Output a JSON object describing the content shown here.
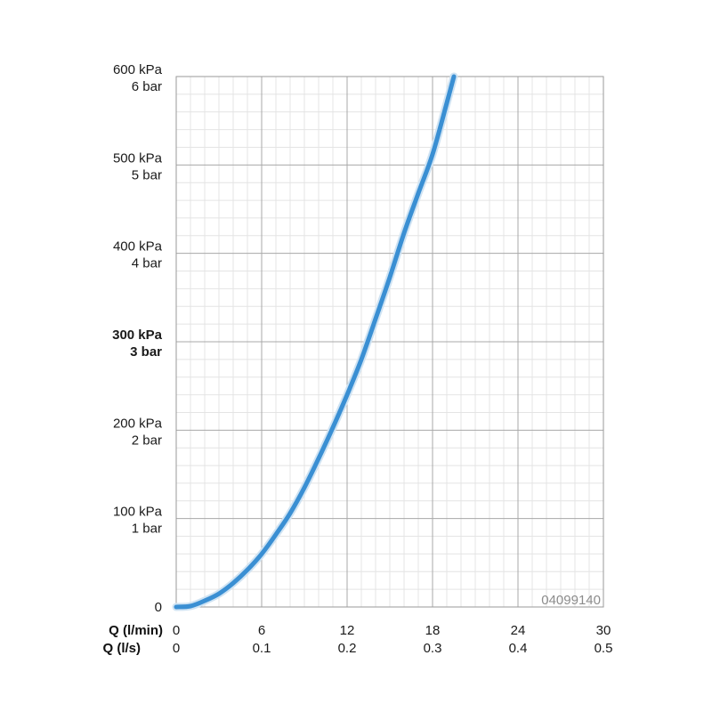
{
  "chart_data": {
    "type": "line",
    "x_unit_primary": "l/min",
    "x": [
      0,
      1,
      2,
      3,
      4,
      5,
      6,
      7,
      8,
      9,
      10,
      11,
      12,
      13,
      14,
      15,
      16,
      17,
      18,
      19,
      19.5
    ],
    "series": [
      {
        "values": [
          0,
          1,
          7,
          15,
          27,
          42,
          60,
          82,
          106,
          135,
          168,
          203,
          240,
          280,
          326,
          373,
          423,
          468,
          512,
          570,
          600
        ]
      }
    ],
    "y_unit": "kPa",
    "xlim": [
      0,
      30
    ],
    "ylim": [
      0,
      600
    ],
    "x_axis_label_primary": "Q (l/min)",
    "x_axis_label_secondary": "Q (l/s)",
    "x_ticks_primary": [
      "0",
      "6",
      "12",
      "18",
      "24",
      "30"
    ],
    "x_ticks_secondary": [
      "0",
      "0.1",
      "0.2",
      "0.3",
      "0.4",
      "0.5"
    ],
    "y_ticks": [
      {
        "value": 0,
        "kpa": "0",
        "bar": "",
        "bold": false
      },
      {
        "value": 100,
        "kpa": "100 kPa",
        "bar": "1 bar",
        "bold": false
      },
      {
        "value": 200,
        "kpa": "200 kPa",
        "bar": "2 bar",
        "bold": false
      },
      {
        "value": 300,
        "kpa": "300 kPa",
        "bar": "3 bar",
        "bold": true
      },
      {
        "value": 400,
        "kpa": "400 kPa",
        "bar": "4 bar",
        "bold": false
      },
      {
        "value": 500,
        "kpa": "500 kPa",
        "bar": "5 bar",
        "bold": false
      },
      {
        "value": 600,
        "kpa": "600 kPa",
        "bar": "6 bar",
        "bold": false
      }
    ],
    "grid": true,
    "line_color": "#3a8fd3",
    "article_code": "04099140"
  }
}
